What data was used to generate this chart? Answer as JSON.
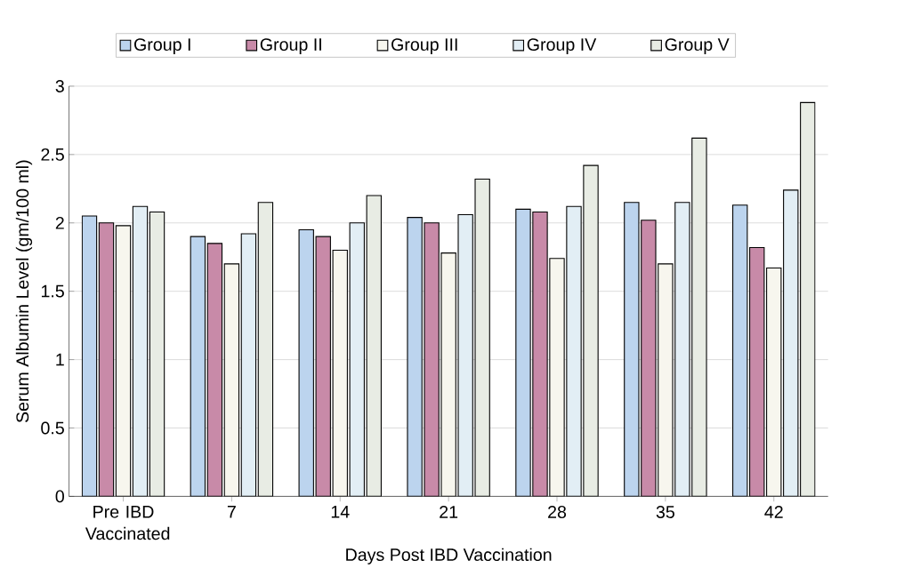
{
  "chart_data": {
    "type": "bar",
    "xlabel": "Days Post IBD Vaccination",
    "ylabel": "Serum Albumin Level  (gm/100 ml)",
    "categories": [
      "Pre IBD Vaccinated",
      "7",
      "14",
      "21",
      "28",
      "35",
      "42"
    ],
    "series": [
      {
        "name": "Group I",
        "color": "#bcd4ee",
        "values": [
          2.05,
          1.9,
          1.95,
          2.04,
          2.1,
          2.15,
          2.13
        ]
      },
      {
        "name": "Group II",
        "color": "#c88aa8",
        "values": [
          2.0,
          1.85,
          1.9,
          2.0,
          2.08,
          2.02,
          1.82
        ]
      },
      {
        "name": "Group III",
        "color": "#f7f6ee",
        "values": [
          1.98,
          1.7,
          1.8,
          1.78,
          1.74,
          1.7,
          1.67
        ]
      },
      {
        "name": "Group IV",
        "color": "#e2eef5",
        "values": [
          2.12,
          1.92,
          2.0,
          2.06,
          2.12,
          2.15,
          2.24
        ]
      },
      {
        "name": "Group V",
        "color": "#e8ece4",
        "values": [
          2.08,
          2.15,
          2.2,
          2.32,
          2.42,
          2.62,
          2.88
        ]
      }
    ],
    "ylim": [
      0,
      3
    ],
    "yticks": [
      0,
      0.5,
      1,
      1.5,
      2,
      2.5,
      3
    ],
    "grid": "y",
    "legend": "top"
  }
}
